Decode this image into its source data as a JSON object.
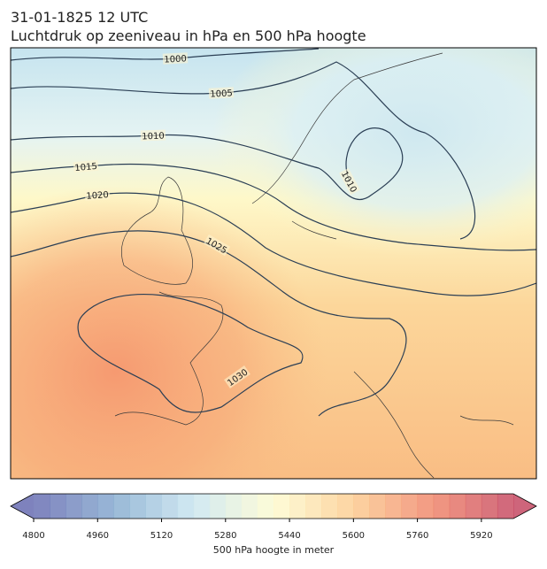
{
  "title": "31-01-1825 12 UTC",
  "subtitle": "Luchtdruk op zeeniveau in hPa en 500 hPa hoogte",
  "contours": {
    "levels": [
      1000,
      1005,
      1010,
      1015,
      1020,
      1025,
      1030,
      1010
    ],
    "color": "#2b3f55"
  },
  "colorbar": {
    "label": "500 hPa hoogte in meter",
    "lim": [
      4800,
      6000
    ],
    "ticks": [
      4800,
      4960,
      5120,
      5280,
      5440,
      5600,
      5760,
      5920
    ],
    "colors": [
      "#5e63ad",
      "#7fa6cd",
      "#c6e4ef",
      "#fefbce",
      "#fcc98a",
      "#ef7f63",
      "#c23e5a"
    ]
  }
}
